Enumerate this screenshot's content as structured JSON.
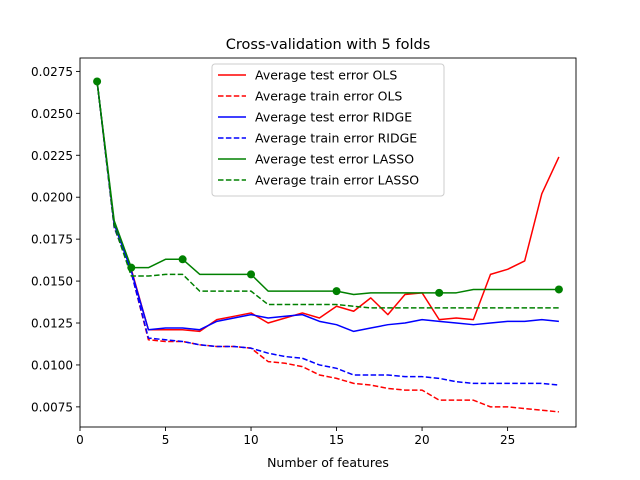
{
  "chart_data": {
    "type": "line",
    "title": "Cross-validation with 5 folds",
    "xlabel": "Number of features",
    "ylabel": "",
    "xlim": [
      0,
      29
    ],
    "ylim": [
      0.0063,
      0.0283
    ],
    "xticks": [
      0,
      5,
      10,
      15,
      20,
      25
    ],
    "xtick_labels": [
      "0",
      "5",
      "10",
      "15",
      "20",
      "25"
    ],
    "yticks": [
      0.0075,
      0.01,
      0.0125,
      0.015,
      0.0175,
      0.02,
      0.0225,
      0.025,
      0.0275
    ],
    "ytick_labels": [
      "0.0075",
      "0.0100",
      "0.0125",
      "0.0150",
      "0.0175",
      "0.0200",
      "0.0225",
      "0.0250",
      "0.0275"
    ],
    "grid": false,
    "legend_position": "top-center",
    "x": [
      1,
      2,
      3,
      4,
      5,
      6,
      7,
      8,
      9,
      10,
      11,
      12,
      13,
      14,
      15,
      16,
      17,
      18,
      19,
      20,
      21,
      22,
      23,
      24,
      25,
      26,
      27,
      28
    ],
    "series": [
      {
        "name": "Average test error OLS",
        "color": "#ff0000",
        "dash": "solid",
        "values": [
          0.0269,
          0.0184,
          0.0157,
          0.0121,
          0.0121,
          0.0121,
          0.012,
          0.0127,
          0.0129,
          0.0131,
          0.0125,
          0.0128,
          0.0131,
          0.0128,
          0.0135,
          0.0132,
          0.014,
          0.013,
          0.0142,
          0.0143,
          0.0127,
          0.0128,
          0.0127,
          0.0154,
          0.0157,
          0.0162,
          0.0202,
          0.0224
        ]
      },
      {
        "name": "Average train error OLS",
        "color": "#ff0000",
        "dash": "dashed",
        "values": [
          0.0269,
          0.0182,
          0.0155,
          0.0115,
          0.0114,
          0.0114,
          0.0112,
          0.0111,
          0.0111,
          0.011,
          0.0102,
          0.0101,
          0.0099,
          0.0094,
          0.0092,
          0.0089,
          0.0088,
          0.0086,
          0.0085,
          0.0085,
          0.0079,
          0.0079,
          0.0079,
          0.0075,
          0.0075,
          0.0074,
          0.0073,
          0.0072
        ]
      },
      {
        "name": "Average test error RIDGE",
        "color": "#0000ff",
        "dash": "solid",
        "values": [
          0.0269,
          0.0184,
          0.0156,
          0.0121,
          0.0122,
          0.0122,
          0.0121,
          0.0126,
          0.0128,
          0.013,
          0.0128,
          0.0129,
          0.013,
          0.0126,
          0.0124,
          0.012,
          0.0122,
          0.0124,
          0.0125,
          0.0127,
          0.0126,
          0.0125,
          0.0124,
          0.0125,
          0.0126,
          0.0126,
          0.0127,
          0.0126
        ]
      },
      {
        "name": "Average train error RIDGE",
        "color": "#0000ff",
        "dash": "dashed",
        "values": [
          0.0269,
          0.0182,
          0.0155,
          0.0116,
          0.0115,
          0.0114,
          0.0112,
          0.0111,
          0.0111,
          0.011,
          0.0107,
          0.0105,
          0.0104,
          0.01,
          0.0098,
          0.0094,
          0.0094,
          0.0094,
          0.0093,
          0.0093,
          0.0092,
          0.009,
          0.0089,
          0.0089,
          0.0089,
          0.0089,
          0.0089,
          0.0088
        ]
      },
      {
        "name": "Average test error LASSO",
        "color": "#008000",
        "dash": "solid",
        "values": [
          0.0269,
          0.0186,
          0.0158,
          0.0158,
          0.0163,
          0.0163,
          0.0154,
          0.0154,
          0.0154,
          0.0154,
          0.0144,
          0.0144,
          0.0144,
          0.0144,
          0.0144,
          0.0142,
          0.0143,
          0.0143,
          0.0143,
          0.0143,
          0.0143,
          0.0143,
          0.0145,
          0.0145,
          0.0145,
          0.0145,
          0.0145,
          0.0145
        ]
      },
      {
        "name": "Average train error LASSO",
        "color": "#008000",
        "dash": "dashed",
        "values": [
          0.0269,
          0.0183,
          0.0153,
          0.0153,
          0.0154,
          0.0154,
          0.0144,
          0.0144,
          0.0144,
          0.0144,
          0.0136,
          0.0136,
          0.0136,
          0.0136,
          0.0136,
          0.0135,
          0.0134,
          0.0134,
          0.0134,
          0.0134,
          0.0134,
          0.0134,
          0.0134,
          0.0134,
          0.0134,
          0.0134,
          0.0134,
          0.0134
        ]
      }
    ],
    "markers": {
      "color": "#008000",
      "points": [
        {
          "x": 1,
          "y": 0.0269
        },
        {
          "x": 3,
          "y": 0.0158
        },
        {
          "x": 6,
          "y": 0.0163
        },
        {
          "x": 10,
          "y": 0.0154
        },
        {
          "x": 15,
          "y": 0.0144
        },
        {
          "x": 21,
          "y": 0.0143
        },
        {
          "x": 28,
          "y": 0.0145
        }
      ]
    }
  }
}
